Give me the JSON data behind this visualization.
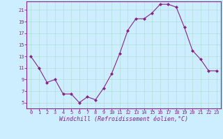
{
  "x": [
    0,
    1,
    2,
    3,
    4,
    5,
    6,
    7,
    8,
    9,
    10,
    11,
    12,
    13,
    14,
    15,
    16,
    17,
    18,
    19,
    20,
    21,
    22,
    23
  ],
  "y": [
    13,
    11,
    8.5,
    9,
    6.5,
    6.5,
    5,
    6,
    5.5,
    7.5,
    10,
    13.5,
    17.5,
    19.5,
    19.5,
    20.5,
    22,
    22,
    21.5,
    18,
    14,
    12.5,
    10.5,
    10.5
  ],
  "line_color": "#882288",
  "marker_color": "#882288",
  "bg_color": "#cceeff",
  "grid_color": "#aaddcc",
  "xlabel": "Windchill (Refroidissement éolien,°C)",
  "xlim_lo": -0.5,
  "xlim_hi": 23.5,
  "ylim_lo": 4,
  "ylim_hi": 22.5,
  "yticks": [
    5,
    7,
    9,
    11,
    13,
    15,
    17,
    19,
    21
  ],
  "xticks": [
    0,
    1,
    2,
    3,
    4,
    5,
    6,
    7,
    8,
    9,
    10,
    11,
    12,
    13,
    14,
    15,
    16,
    17,
    18,
    19,
    20,
    21,
    22,
    23
  ],
  "tick_color": "#882288",
  "tick_fontsize": 5.0,
  "xlabel_fontsize": 6.0,
  "spine_color": "#882288",
  "linewidth": 0.8,
  "markersize": 2.0
}
